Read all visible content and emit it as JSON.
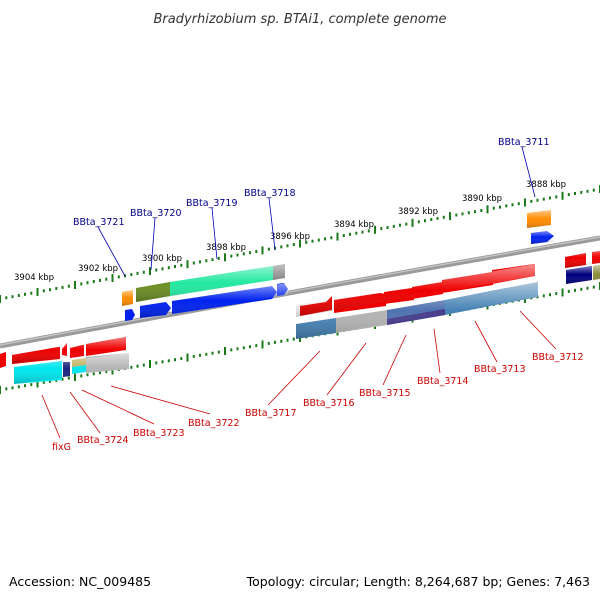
{
  "title": "Bradyrhizobium sp. BTAi1, complete genome",
  "footer": {
    "accession": "Accession: NC_009485",
    "topology": "Topology: circular; Length: 8,264,687 bp; Genes: 7,463"
  },
  "colors": {
    "forward_label": "#00008b",
    "reverse_label": "#cc0000",
    "tick": "#1a7a1a",
    "backbone": "#8c8c8c"
  },
  "scale_labels": [
    "3904 kbp",
    "3902 kbp",
    "3900 kbp",
    "3898 kbp",
    "3896 kbp",
    "3894 kbp",
    "3892 kbp",
    "3890 kbp",
    "3888 kbp"
  ],
  "forward_gene_labels": [
    "BBta_3721",
    "BBta_3720",
    "BBta_3719",
    "BBta_3718",
    "BBta_3711"
  ],
  "reverse_gene_labels": [
    "fixG",
    "BBta_3724",
    "BBta_3723",
    "BBta_3722",
    "BBta_3717",
    "BBta_3716",
    "BBta_3715",
    "BBta_3714",
    "BBta_3713",
    "BBta_3712"
  ]
}
